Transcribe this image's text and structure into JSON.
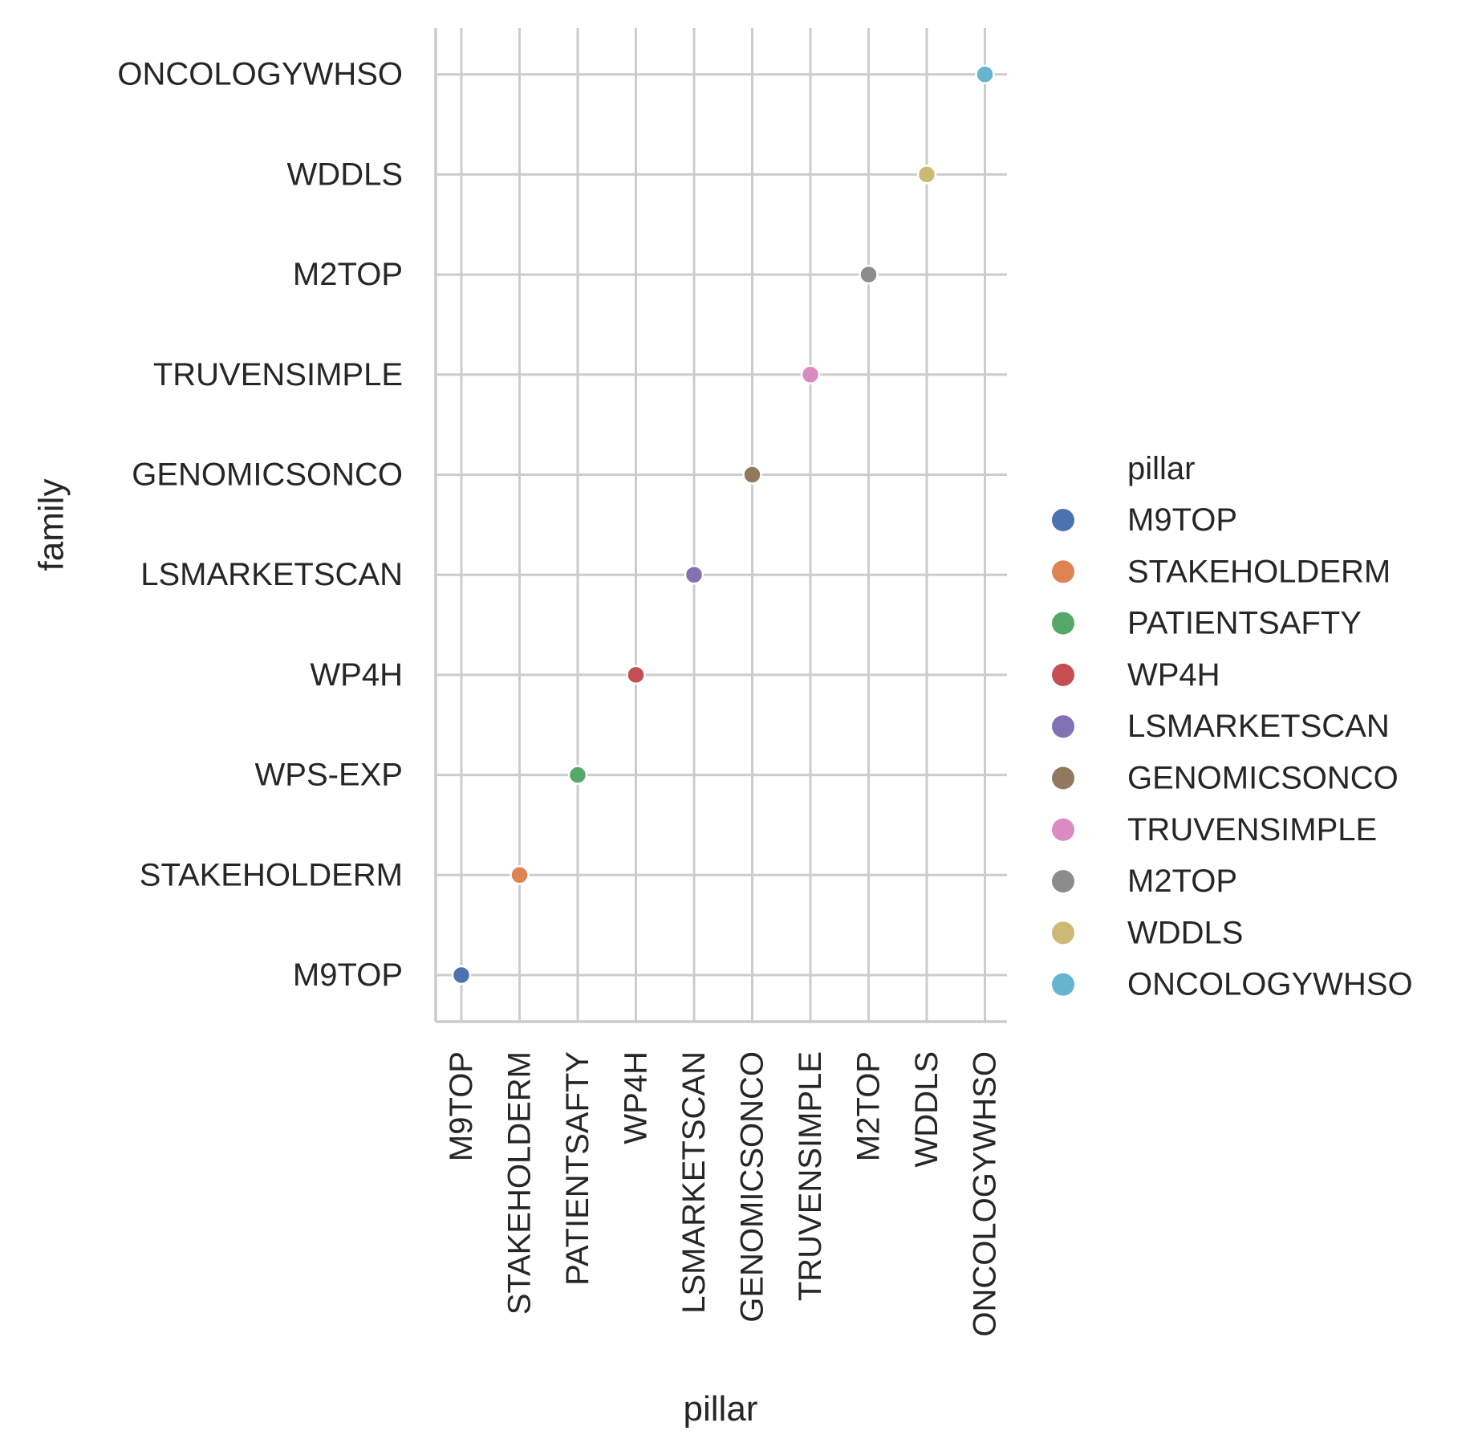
{
  "chart_data": {
    "type": "scatter",
    "title": "",
    "xlabel": "pillar",
    "ylabel": "family",
    "grid": true,
    "legend_title": "pillar",
    "legend_position": "right",
    "x_categories": [
      "M9TOP",
      "STAKEHOLDERM",
      "PATIENTSAFTY",
      "WP4H",
      "LSMARKETSCAN",
      "GENOMICSONCO",
      "TRUVENSIMPLE",
      "M2TOP",
      "WDDLS",
      "ONCOLOGYWHSO"
    ],
    "y_categories": [
      "M9TOP",
      "STAKEHOLDERM",
      "WPS-EXP",
      "WP4H",
      "LSMARKETSCAN",
      "GENOMICSONCO",
      "TRUVENSIMPLE",
      "M2TOP",
      "WDDLS",
      "ONCOLOGYWHSO"
    ],
    "points": [
      {
        "pillar": "M9TOP",
        "family": "M9TOP"
      },
      {
        "pillar": "STAKEHOLDERM",
        "family": "STAKEHOLDERM"
      },
      {
        "pillar": "PATIENTSAFTY",
        "family": "WPS-EXP"
      },
      {
        "pillar": "WP4H",
        "family": "WP4H"
      },
      {
        "pillar": "LSMARKETSCAN",
        "family": "LSMARKETSCAN"
      },
      {
        "pillar": "GENOMICSONCO",
        "family": "GENOMICSONCO"
      },
      {
        "pillar": "TRUVENSIMPLE",
        "family": "TRUVENSIMPLE"
      },
      {
        "pillar": "M2TOP",
        "family": "M2TOP"
      },
      {
        "pillar": "WDDLS",
        "family": "WDDLS"
      },
      {
        "pillar": "ONCOLOGYWHSO",
        "family": "ONCOLOGYWHSO"
      }
    ],
    "legend": [
      {
        "label": "M9TOP",
        "color": "#4c72b0"
      },
      {
        "label": "STAKEHOLDERM",
        "color": "#dd8452"
      },
      {
        "label": "PATIENTSAFTY",
        "color": "#55a868"
      },
      {
        "label": "WP4H",
        "color": "#c44e52"
      },
      {
        "label": "LSMARKETSCAN",
        "color": "#8172b3"
      },
      {
        "label": "GENOMICSONCO",
        "color": "#937860"
      },
      {
        "label": "TRUVENSIMPLE",
        "color": "#da8bc3"
      },
      {
        "label": "M2TOP",
        "color": "#8c8c8c"
      },
      {
        "label": "WDDLS",
        "color": "#ccb974"
      },
      {
        "label": "ONCOLOGYWHSO",
        "color": "#64b5cd"
      }
    ]
  }
}
